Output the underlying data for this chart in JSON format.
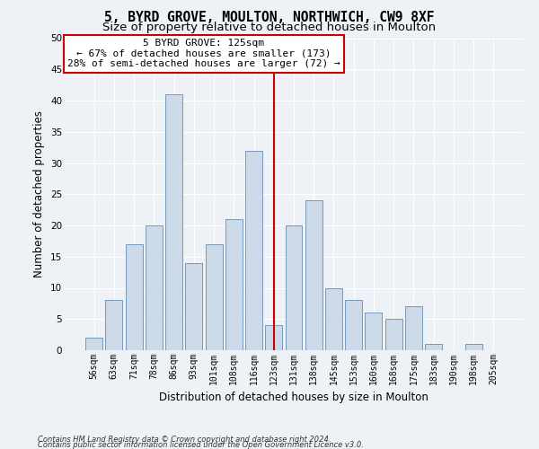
{
  "title": "5, BYRD GROVE, MOULTON, NORTHWICH, CW9 8XF",
  "subtitle": "Size of property relative to detached houses in Moulton",
  "xlabel": "Distribution of detached houses by size in Moulton",
  "ylabel": "Number of detached properties",
  "categories": [
    "56sqm",
    "63sqm",
    "71sqm",
    "78sqm",
    "86sqm",
    "93sqm",
    "101sqm",
    "108sqm",
    "116sqm",
    "123sqm",
    "131sqm",
    "138sqm",
    "145sqm",
    "153sqm",
    "160sqm",
    "168sqm",
    "175sqm",
    "183sqm",
    "190sqm",
    "198sqm",
    "205sqm"
  ],
  "values": [
    2,
    8,
    17,
    20,
    41,
    14,
    17,
    21,
    32,
    4,
    20,
    24,
    10,
    8,
    6,
    5,
    7,
    1,
    0,
    1,
    0
  ],
  "bar_color": "#ccd9e8",
  "bar_edge_color": "#7799bb",
  "vline_x_index": 9.5,
  "annotation_line1": "5 BYRD GROVE: 125sqm",
  "annotation_line2": "← 67% of detached houses are smaller (173)",
  "annotation_line3": "28% of semi-detached houses are larger (72) →",
  "annotation_box_color": "#ffffff",
  "annotation_box_edge": "#cc0000",
  "vline_color": "#cc0000",
  "ylim": [
    0,
    50
  ],
  "yticks": [
    0,
    5,
    10,
    15,
    20,
    25,
    30,
    35,
    40,
    45,
    50
  ],
  "footer1": "Contains HM Land Registry data © Crown copyright and database right 2024.",
  "footer2": "Contains public sector information licensed under the Open Government Licence v3.0.",
  "bg_color": "#eef2f7",
  "plot_bg_color": "#eef2f7",
  "title_fontsize": 10.5,
  "subtitle_fontsize": 9.5,
  "tick_fontsize": 7,
  "ylabel_fontsize": 8.5,
  "xlabel_fontsize": 8.5,
  "annotation_fontsize": 8,
  "footer_fontsize": 6
}
